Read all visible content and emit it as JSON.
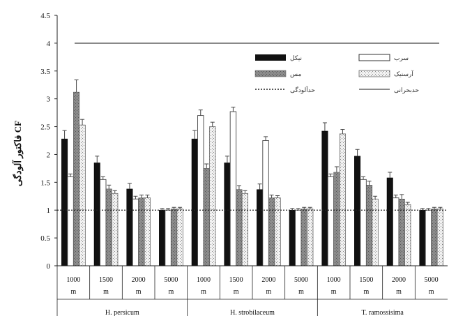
{
  "chart_data": {
    "type": "bar",
    "ylabel": "فاکتور آلودگی CF",
    "ylim": [
      0,
      4.5
    ],
    "yticks": [
      0,
      0.5,
      1,
      1.5,
      2,
      2.5,
      3,
      3.5,
      4,
      4.5
    ],
    "ytick_labels": [
      "0",
      "0.5",
      "1",
      "1.5",
      "2",
      "2.5",
      "3",
      "3.5",
      "4",
      "4.5"
    ],
    "grid": false,
    "legend_position": "top-right",
    "groups": [
      {
        "name": "H. persicum",
        "categories": [
          "1000 m",
          "1500 m",
          "2000 m",
          "5000 m"
        ]
      },
      {
        "name": "H. strobilaceum",
        "categories": [
          "1000 m",
          "1500 m",
          "2000 m",
          "5000 m"
        ]
      },
      {
        "name": "T. ramossisima",
        "categories": [
          "1000 m",
          "1500 m",
          "2000 m",
          "5000 m"
        ]
      }
    ],
    "category_labels": [
      {
        "line1": "1000",
        "line2": "m"
      },
      {
        "line1": "1500",
        "line2": "m"
      },
      {
        "line1": "2000",
        "line2": "m"
      },
      {
        "line1": "5000",
        "line2": "m"
      }
    ],
    "series": [
      {
        "name": "نیکل",
        "color": "#111111",
        "pattern": "solid",
        "values": [
          2.28,
          1.85,
          1.38,
          1.0,
          2.28,
          1.85,
          1.37,
          1.0,
          2.42,
          1.97,
          1.58,
          1.0
        ],
        "errors": [
          0.15,
          0.12,
          0.1,
          0.03,
          0.15,
          0.12,
          0.1,
          0.03,
          0.15,
          0.12,
          0.1,
          0.03
        ]
      },
      {
        "name": "سرب",
        "color": "#ffffff",
        "pattern": "white",
        "values": [
          1.6,
          1.55,
          1.2,
          1.0,
          2.7,
          2.77,
          2.25,
          1.0,
          1.6,
          1.55,
          1.22,
          1.0
        ],
        "errors": [
          0.05,
          0.05,
          0.05,
          0.03,
          0.1,
          0.08,
          0.07,
          0.03,
          0.05,
          0.05,
          0.05,
          0.03
        ]
      },
      {
        "name": "مس",
        "color": "#7a7a7a",
        "pattern": "gray",
        "values": [
          3.12,
          1.38,
          1.22,
          1.02,
          1.75,
          1.37,
          1.22,
          1.02,
          1.68,
          1.45,
          1.2,
          1.02
        ],
        "errors": [
          0.22,
          0.07,
          0.05,
          0.03,
          0.08,
          0.07,
          0.05,
          0.03,
          0.1,
          0.07,
          0.08,
          0.03
        ]
      },
      {
        "name": "آرسنیک",
        "color": "#d9d9d9",
        "pattern": "dotted",
        "values": [
          2.53,
          1.3,
          1.22,
          1.02,
          2.5,
          1.3,
          1.22,
          1.02,
          2.37,
          1.2,
          1.1,
          1.02
        ],
        "errors": [
          0.1,
          0.05,
          0.05,
          0.03,
          0.08,
          0.05,
          0.04,
          0.03,
          0.08,
          0.05,
          0.04,
          0.03
        ]
      }
    ],
    "reference_lines": [
      {
        "name": "حدآلودگی",
        "value": 1,
        "style": "dotted"
      },
      {
        "name": "حدبحرانی",
        "value": 4,
        "style": "solid"
      }
    ]
  }
}
